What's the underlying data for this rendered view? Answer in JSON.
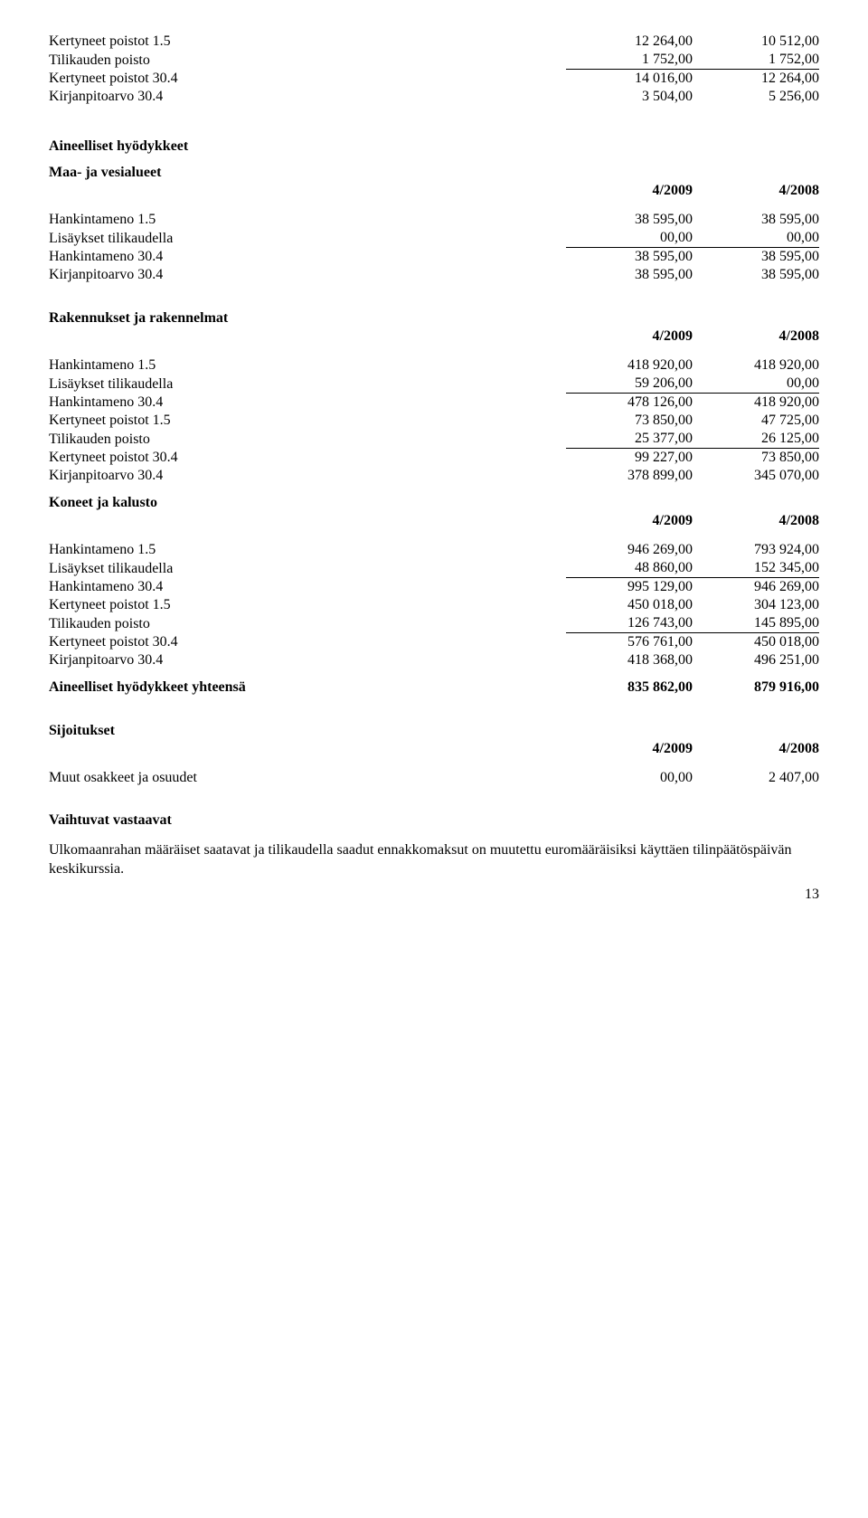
{
  "top_block": {
    "rows": [
      {
        "label": "Kertyneet poistot 1.5",
        "c1": "12 264,00",
        "c2": "10 512,00"
      },
      {
        "label": "Tilikauden poisto",
        "c1": "1 752,00",
        "c2": "1 752,00",
        "underline": true
      },
      {
        "label": "Kertyneet poistot 30.4",
        "c1": "14 016,00",
        "c2": "12 264,00"
      },
      {
        "label": "Kirjanpitoarvo 30.4",
        "c1": "3 504,00",
        "c2": "5 256,00"
      }
    ]
  },
  "sec1": {
    "heading1": "Aineelliset hyödykkeet",
    "heading2": "Maa- ja vesialueet",
    "year1": "4/2009",
    "year2": "4/2008",
    "rows": [
      {
        "label": "Hankintameno 1.5",
        "c1": "38 595,00",
        "c2": "38 595,00"
      },
      {
        "label": "Lisäykset tilikaudella",
        "c1": "00,00",
        "c2": "00,00",
        "underline": true
      },
      {
        "label": "Hankintameno 30.4",
        "c1": "38 595,00",
        "c2": "38 595,00"
      },
      {
        "label": "Kirjanpitoarvo 30.4",
        "c1": "38 595,00",
        "c2": "38 595,00"
      }
    ]
  },
  "sec2": {
    "heading": "Rakennukset ja rakennelmat",
    "year1": "4/2009",
    "year2": "4/2008",
    "rows": [
      {
        "label": "Hankintameno 1.5",
        "c1": "418 920,00",
        "c2": "418 920,00"
      },
      {
        "label": "Lisäykset tilikaudella",
        "c1": "59 206,00",
        "c2": "00,00",
        "underline": true
      },
      {
        "label": "Hankintameno 30.4",
        "c1": "478 126,00",
        "c2": "418 920,00"
      },
      {
        "label": "Kertyneet poistot 1.5",
        "c1": "73 850,00",
        "c2": "47 725,00"
      },
      {
        "label": "Tilikauden poisto",
        "c1": "25 377,00",
        "c2": "26 125,00",
        "underline": true
      },
      {
        "label": "Kertyneet poistot 30.4",
        "c1": "99 227,00",
        "c2": "73 850,00"
      },
      {
        "label": "Kirjanpitoarvo 30.4",
        "c1": "378 899,00",
        "c2": "345 070,00"
      }
    ]
  },
  "sec3": {
    "heading": "Koneet ja kalusto",
    "year1": "4/2009",
    "year2": "4/2008",
    "rows": [
      {
        "label": "Hankintameno 1.5",
        "c1": "946 269,00",
        "c2": "793 924,00"
      },
      {
        "label": "Lisäykset tilikaudella",
        "c1": "48 860,00",
        "c2": "152 345,00",
        "underline": true
      },
      {
        "label": "Hankintameno 30.4",
        "c1": "995 129,00",
        "c2": "946 269,00"
      },
      {
        "label": "Kertyneet poistot 1.5",
        "c1": "450 018,00",
        "c2": "304 123,00"
      },
      {
        "label": "Tilikauden poisto",
        "c1": "126 743,00",
        "c2": "145 895,00",
        "underline": true
      },
      {
        "label": "Kertyneet poistot 30.4",
        "c1": "576 761,00",
        "c2": "450 018,00"
      },
      {
        "label": "Kirjanpitoarvo 30.4",
        "c1": "418 368,00",
        "c2": "496 251,00"
      }
    ]
  },
  "total_row": {
    "label": "Aineelliset hyödykkeet yhteensä",
    "c1": "835 862,00",
    "c2": "879 916,00"
  },
  "sec4": {
    "heading": "Sijoitukset",
    "year1": "4/2009",
    "year2": "4/2008",
    "rows": [
      {
        "label": "Muut osakkeet ja osuudet",
        "c1": "00,00",
        "c2": "2 407,00"
      }
    ]
  },
  "vaihtuvat_heading": "Vaihtuvat vastaavat",
  "body_text": "Ulkomaanrahan määräiset saatavat ja tilikaudella saadut ennakkomaksut on muutettu euromääräisiksi käyttäen tilinpäätöspäivän keskikurssia.",
  "page_number": "13"
}
